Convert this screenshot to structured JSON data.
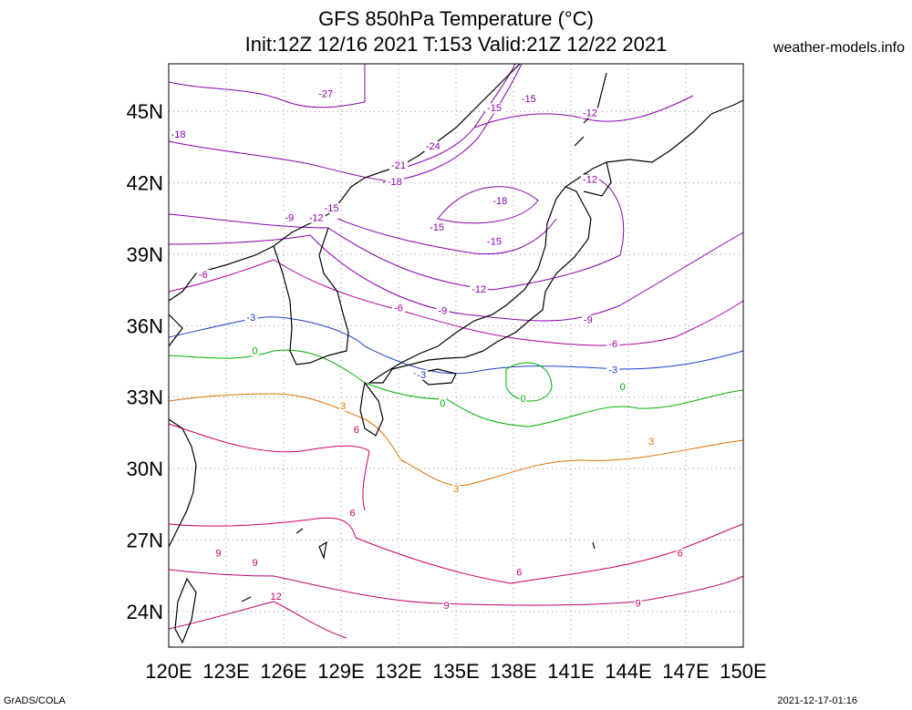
{
  "header": {
    "title_line1": "GFS 850hPa Temperature (°C)",
    "title_line2": "Init:12Z 12/16 2021 T:153 Valid:21Z 12/22 2021",
    "site": "weather-models.info"
  },
  "footer": {
    "credit": "GrADS/COLA",
    "timestamp": "2021-12-17-01:16"
  },
  "map": {
    "lon_range": [
      120,
      150
    ],
    "lat_range": [
      22.5,
      47
    ],
    "lon_ticks": [
      "120E",
      "123E",
      "126E",
      "129E",
      "132E",
      "135E",
      "138E",
      "141E",
      "144E",
      "147E",
      "150E"
    ],
    "lat_ticks": [
      "24N",
      "27N",
      "30N",
      "33N",
      "36N",
      "39N",
      "42N",
      "45N"
    ],
    "contour_labels": [
      {
        "text": "-27",
        "lon": 128.2,
        "lat": 45.6,
        "color": "#8b00b0"
      },
      {
        "text": "-18",
        "lon": 120.5,
        "lat": 43.9,
        "color": "#8b00b0"
      },
      {
        "text": "-15",
        "lon": 137.0,
        "lat": 45.0,
        "color": "#8b00b0"
      },
      {
        "text": "-15",
        "lon": 138.8,
        "lat": 45.4,
        "color": "#8b00b0"
      },
      {
        "text": "-12",
        "lon": 142.0,
        "lat": 44.8,
        "color": "#8b00b0"
      },
      {
        "text": "-24",
        "lon": 133.8,
        "lat": 43.4,
        "color": "#8b00b0"
      },
      {
        "text": "-21",
        "lon": 132.0,
        "lat": 42.6,
        "color": "#8b00b0"
      },
      {
        "text": "-18",
        "lon": 131.8,
        "lat": 41.9,
        "color": "#8b00b0"
      },
      {
        "text": "-12",
        "lon": 142.0,
        "lat": 42.0,
        "color": "#8b00b0"
      },
      {
        "text": "-18",
        "lon": 137.3,
        "lat": 41.1,
        "color": "#8b00b0"
      },
      {
        "text": "-15",
        "lon": 128.5,
        "lat": 40.8,
        "color": "#8b00b0"
      },
      {
        "text": "-12",
        "lon": 127.7,
        "lat": 40.4,
        "color": "#8b00b0"
      },
      {
        "text": "-9",
        "lon": 126.3,
        "lat": 40.4,
        "color": "#8b00b0"
      },
      {
        "text": "-15",
        "lon": 134.0,
        "lat": 40.0,
        "color": "#8b00b0"
      },
      {
        "text": "-15",
        "lon": 137.0,
        "lat": 39.4,
        "color": "#8b00b0"
      },
      {
        "text": "-12",
        "lon": 136.2,
        "lat": 37.4,
        "color": "#8b00b0"
      },
      {
        "text": "-6",
        "lon": 121.8,
        "lat": 38.0,
        "color": "#b000a0"
      },
      {
        "text": "-6",
        "lon": 132.0,
        "lat": 36.6,
        "color": "#b000a0"
      },
      {
        "text": "-9",
        "lon": 134.3,
        "lat": 36.5,
        "color": "#8b00b0"
      },
      {
        "text": "-9",
        "lon": 141.9,
        "lat": 36.1,
        "color": "#8b00b0"
      },
      {
        "text": "-6",
        "lon": 143.2,
        "lat": 35.1,
        "color": "#b000a0"
      },
      {
        "text": "-3",
        "lon": 124.3,
        "lat": 36.2,
        "color": "#1a3fd0"
      },
      {
        "text": "-3",
        "lon": 133.2,
        "lat": 33.8,
        "color": "#1a3fd0"
      },
      {
        "text": "-3",
        "lon": 143.2,
        "lat": 34.0,
        "color": "#1a3fd0"
      },
      {
        "text": "0",
        "lon": 124.5,
        "lat": 34.8,
        "color": "#00b000"
      },
      {
        "text": "0",
        "lon": 134.3,
        "lat": 32.6,
        "color": "#00b000"
      },
      {
        "text": "0",
        "lon": 138.5,
        "lat": 32.8,
        "color": "#00b000"
      },
      {
        "text": "0",
        "lon": 143.7,
        "lat": 33.3,
        "color": "#00b000"
      },
      {
        "text": "3",
        "lon": 129.1,
        "lat": 32.5,
        "color": "#e07000"
      },
      {
        "text": "3",
        "lon": 135.0,
        "lat": 29.0,
        "color": "#e07000"
      },
      {
        "text": "3",
        "lon": 145.2,
        "lat": 31.0,
        "color": "#e07000"
      },
      {
        "text": "6",
        "lon": 129.8,
        "lat": 31.5,
        "color": "#d00060"
      },
      {
        "text": "6",
        "lon": 129.6,
        "lat": 28.0,
        "color": "#d00060"
      },
      {
        "text": "6",
        "lon": 138.3,
        "lat": 25.5,
        "color": "#d00060"
      },
      {
        "text": "6",
        "lon": 146.7,
        "lat": 26.3,
        "color": "#d00060"
      },
      {
        "text": "9",
        "lon": 122.6,
        "lat": 26.3,
        "color": "#c00070"
      },
      {
        "text": "9",
        "lon": 124.5,
        "lat": 25.9,
        "color": "#c00070"
      },
      {
        "text": "9",
        "lon": 134.5,
        "lat": 24.1,
        "color": "#c00070"
      },
      {
        "text": "9",
        "lon": 144.5,
        "lat": 24.2,
        "color": "#c00070"
      },
      {
        "text": "12",
        "lon": 125.6,
        "lat": 24.5,
        "color": "#c00070"
      }
    ]
  },
  "colors": {
    "frame": "#000000",
    "grid": "#909090",
    "coast": "#000000",
    "cold": "#8b00b0",
    "minus6": "#b000a0",
    "minus3": "#1a3fd0",
    "zero": "#00b000",
    "plus3": "#e07000",
    "warm": "#d00060"
  }
}
